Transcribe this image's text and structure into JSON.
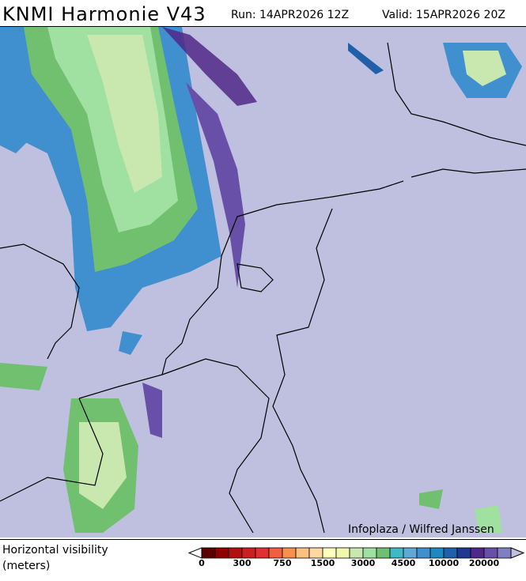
{
  "header": {
    "title": "KNMI Harmonie V43",
    "run": "Run: 14APR2026 12Z",
    "valid": "Valid: 15APR2026 20Z"
  },
  "map": {
    "background_color": "#bfbfdf",
    "credit": "Infoplaza / Wilfred Janssen"
  },
  "legend": {
    "label_line1": "Horizontal visibility",
    "label_line2": "(meters)",
    "ticks": [
      "0",
      "300",
      "750",
      "1500",
      "3000",
      "4500",
      "10000",
      "20000"
    ],
    "colors": [
      "#5a0000",
      "#900000",
      "#b01010",
      "#cc2020",
      "#e03030",
      "#f06040",
      "#f89050",
      "#fcc080",
      "#fdd8a0",
      "#ffffc0",
      "#f0f8b0",
      "#c8e8b0",
      "#a0e0a0",
      "#70c070",
      "#40b8c8",
      "#60a8d8",
      "#4090d0",
      "#2088c0",
      "#2060a8",
      "#203890",
      "#502888",
      "#6850a8",
      "#8080c0"
    ],
    "low_end_color": "#ffffff",
    "high_end_color": "#c0c0e0"
  }
}
